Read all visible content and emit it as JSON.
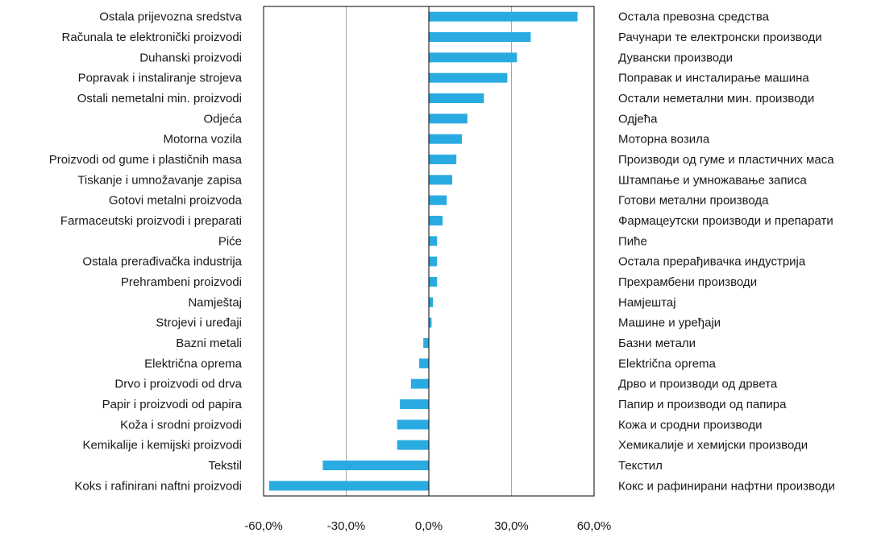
{
  "chart_data": {
    "type": "bar",
    "orientation": "horizontal",
    "categories": [
      "Ostala prijevozna sredstva",
      "Računala te elektronički proizvodi",
      "Duhanski proizvodi",
      "Popravak i instaliranje strojeva",
      "Ostali nemetalni min. proizvodi",
      "Odjeća",
      "Motorna vozila",
      "Proizvodi od gume i plastičnih masa",
      "Tiskanje i umnožavanje zapisa",
      "Gotovi metalni proizvoda",
      "Farmaceutski proizvodi i preparati",
      "Piće",
      "Ostala prerađivačka industrija",
      "Prehrambeni proizvodi",
      "Namještaj",
      "Strojevi i uređaji",
      "Bazni metali",
      "Električna oprema",
      "Drvo i proizvodi od drva",
      "Papir i proizvodi od papira",
      "Koža i srodni proizvodi",
      "Kemikalije i kemijski proizvodi",
      "Tekstil",
      "Koks i rafinirani naftni proizvodi"
    ],
    "categories_secondary": [
      "Остала превозна средства",
      "Рачунари те електронски производи",
      "Дувански производи",
      "Поправак и инсталирање машина",
      "Остали неметални мин. производи",
      "Одјећа",
      "Моторна возила",
      "Производи од гуме и пластичних маса",
      "Штампање и умножавање записа",
      "Готови метални производа",
      "Фармацеутски производи и препарати",
      "Пиће",
      "Остала прерађивачка индустрија",
      "Прехрамбени производи",
      "Намјештај",
      "Машине и уређаји",
      "Базни метали",
      "Električna oprema",
      "Дрво и производи од дрвета",
      "Папир и производи од папира",
      "Кожа и сродни производи",
      "Хемикалије и хемијски производи",
      "Текстил",
      "Кокс и рафинирани нафтни производи"
    ],
    "values": [
      54.0,
      37.0,
      32.0,
      28.5,
      20.0,
      14.0,
      12.0,
      10.0,
      8.5,
      6.5,
      5.0,
      3.0,
      3.0,
      3.0,
      1.5,
      1.0,
      -2.0,
      -3.5,
      -6.5,
      -10.5,
      -11.5,
      -11.5,
      -38.5,
      -58.0
    ],
    "xlim": [
      -60,
      60
    ],
    "xticks": [
      -60,
      -30,
      0,
      30,
      60
    ],
    "xtick_labels": [
      "-60,0%",
      "-30,0%",
      "0,0%",
      "30,0%",
      "60,0%"
    ],
    "grid": "vertical",
    "bar_color": "#29abe2",
    "title": "",
    "xlabel": "",
    "ylabel": ""
  }
}
